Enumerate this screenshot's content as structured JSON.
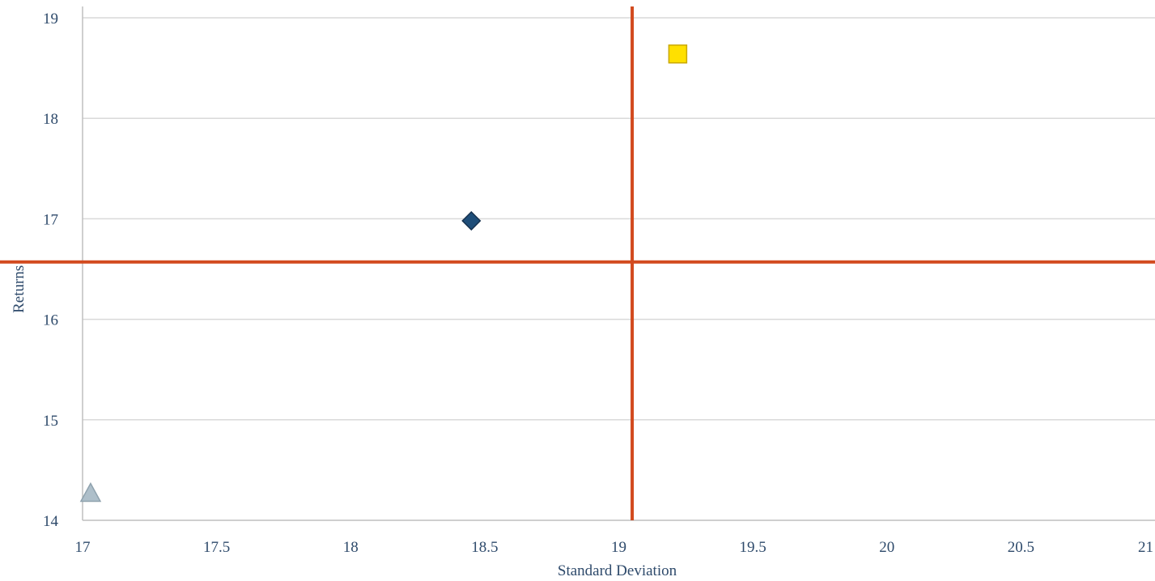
{
  "chart_data": {
    "type": "scatter",
    "title": "",
    "xlabel": "Standard Deviation",
    "ylabel": "Returns",
    "xlim": [
      17,
      21
    ],
    "ylim": [
      14,
      19
    ],
    "x_ticks": [
      "17",
      "17.5",
      "18",
      "18.5",
      "19",
      "19.5",
      "20",
      "20.5",
      "21"
    ],
    "y_ticks": [
      "14",
      "15",
      "16",
      "17",
      "18",
      "19"
    ],
    "grid": "horizontal",
    "legend": "none",
    "points": [
      {
        "x": 18.45,
        "y": 16.98,
        "marker": "diamond",
        "color": "#1f4e79"
      },
      {
        "x": 19.22,
        "y": 18.64,
        "marker": "square",
        "color": "#ffe000"
      },
      {
        "x": 17.03,
        "y": 14.27,
        "marker": "triangle",
        "color": "#aebfca"
      }
    ],
    "reference_lines": {
      "x": 19.05,
      "y": 16.57,
      "color": "#d24a1e"
    },
    "colors": {
      "text": "#2e4a6b",
      "grid": "#d9d9d9",
      "axis": "#bfbfbf"
    }
  }
}
